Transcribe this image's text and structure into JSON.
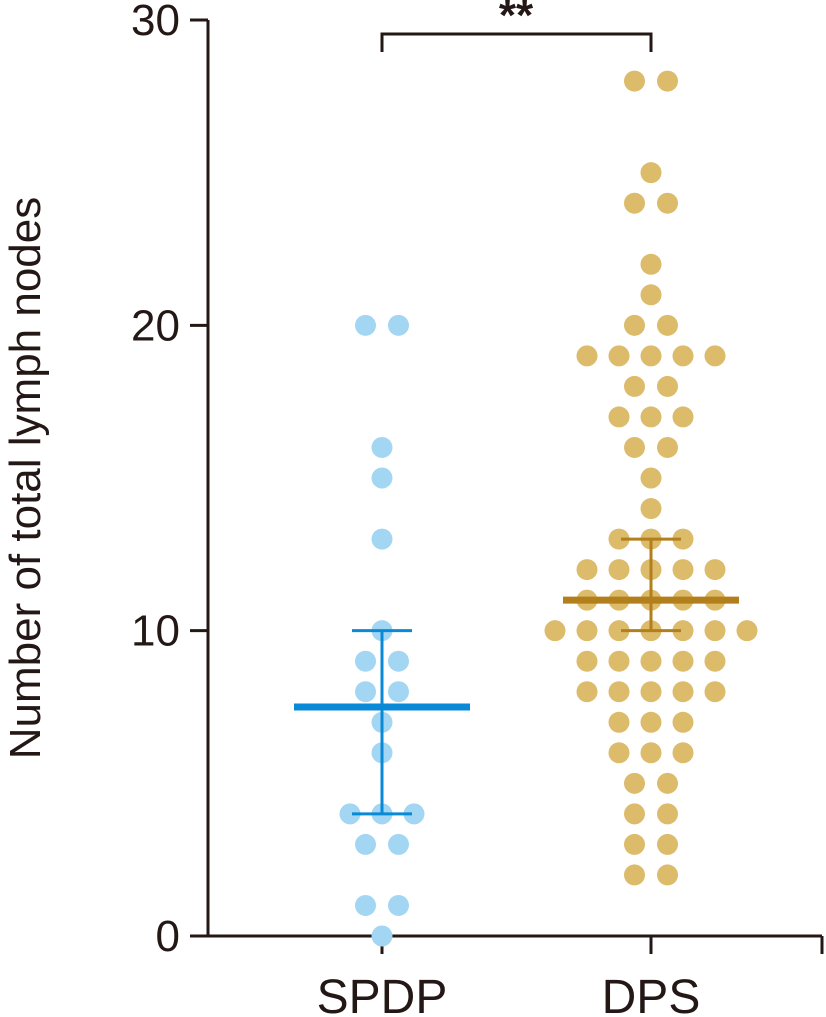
{
  "chart_data": {
    "type": "scatter",
    "ylabel": "Number of total lymph nodes",
    "ylim": [
      0,
      30
    ],
    "y_ticks": [
      "0",
      "10",
      "20",
      "30"
    ],
    "categories": [
      "SPDP",
      "DPS"
    ],
    "significance": "**",
    "series": [
      {
        "category": "SPDP",
        "color": "#a3d6f3",
        "summary_color": "#0a8ad6",
        "median": 7.5,
        "error_low": 4,
        "error_high": 10,
        "points": [
          20,
          20,
          16,
          15,
          13,
          10,
          9,
          9,
          8,
          8,
          7,
          6,
          4,
          4,
          4,
          3,
          3,
          1,
          1,
          0
        ]
      },
      {
        "category": "DPS",
        "color": "#dcbb6b",
        "summary_color": "#b37e1c",
        "median": 11,
        "error_low": 10,
        "error_high": 13,
        "points": [
          28,
          28,
          25,
          24,
          24,
          22,
          21,
          20,
          20,
          19,
          19,
          19,
          19,
          19,
          18,
          18,
          17,
          17,
          17,
          16,
          16,
          15,
          14,
          13,
          13,
          13,
          12,
          12,
          12,
          12,
          12,
          11,
          11,
          11,
          11,
          11,
          10,
          10,
          10,
          10,
          10,
          10,
          10,
          9,
          9,
          9,
          9,
          9,
          8,
          8,
          8,
          8,
          8,
          7,
          7,
          7,
          6,
          6,
          6,
          5,
          5,
          4,
          4,
          3,
          3,
          2,
          2
        ]
      }
    ]
  }
}
